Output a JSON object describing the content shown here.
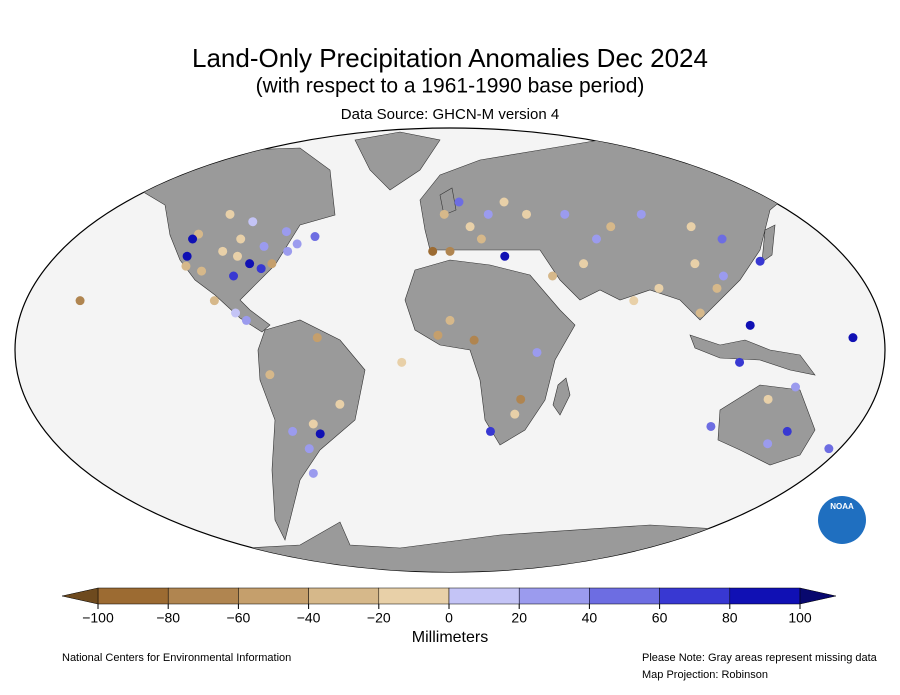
{
  "chart_data": {
    "type": "map",
    "title": "Land-Only Precipitation Anomalies Dec 2024",
    "subtitle": "(with respect to a 1961-1990 base period)",
    "source": "Data Source: GHCN-M version 4",
    "colorbar": {
      "label": "Millimeters",
      "ticks": [
        {
          "value": -100,
          "label": "−100"
        },
        {
          "value": -80,
          "label": "−80"
        },
        {
          "value": -60,
          "label": "−60"
        },
        {
          "value": -40,
          "label": "−40"
        },
        {
          "value": -20,
          "label": "−20"
        },
        0,
        20,
        40,
        60,
        80,
        100
      ],
      "colors": [
        "#9c6b32",
        "#b08550",
        "#c59f6c",
        "#d6b88a",
        "#e8d0a8",
        "#c4c4f6",
        "#9b9bee",
        "#6d6de2",
        "#3838d2",
        "#1010b4"
      ],
      "under_color": "#6e4a1e",
      "over_color": "#08086e"
    },
    "stations": [
      {
        "lon": -122,
        "lat": 47,
        "value": -30
      },
      {
        "lon": -118,
        "lat": 34,
        "value": -40
      },
      {
        "lon": -105,
        "lat": 40,
        "value": -20
      },
      {
        "lon": -95,
        "lat": 30,
        "value": 60
      },
      {
        "lon": -90,
        "lat": 35,
        "value": 80
      },
      {
        "lon": -80,
        "lat": 35,
        "value": -50
      },
      {
        "lon": -75,
        "lat": 40,
        "value": 30
      },
      {
        "lon": -87,
        "lat": 42,
        "value": 20
      },
      {
        "lon": -100,
        "lat": 45,
        "value": -10
      },
      {
        "lon": -110,
        "lat": 32,
        "value": -30
      },
      {
        "lon": -120,
        "lat": 38,
        "value": 90
      },
      {
        "lon": -123,
        "lat": 45,
        "value": 100
      },
      {
        "lon": -84,
        "lat": 33,
        "value": 70
      },
      {
        "lon": -97,
        "lat": 38,
        "value": -15
      },
      {
        "lon": -72,
        "lat": 43,
        "value": 25
      },
      {
        "lon": -115,
        "lat": 55,
        "value": -20
      },
      {
        "lon": -100,
        "lat": 52,
        "value": 10
      },
      {
        "lon": -80,
        "lat": 48,
        "value": 30
      },
      {
        "lon": -65,
        "lat": 46,
        "value": 40
      },
      {
        "lon": -100,
        "lat": 20,
        "value": -25
      },
      {
        "lon": -90,
        "lat": 15,
        "value": 15
      },
      {
        "lon": -85,
        "lat": 12,
        "value": 35
      },
      {
        "lon": -60,
        "lat": -30,
        "value": -20
      },
      {
        "lon": -65,
        "lat": -40,
        "value": 30
      },
      {
        "lon": -58,
        "lat": -34,
        "value": 90
      },
      {
        "lon": -47,
        "lat": -22,
        "value": -10
      },
      {
        "lon": -70,
        "lat": -33,
        "value": 20
      },
      {
        "lon": -75,
        "lat": -10,
        "value": -40
      },
      {
        "lon": -68,
        "lat": -50,
        "value": 25
      },
      {
        "lon": -55,
        "lat": 5,
        "value": -60
      },
      {
        "lon": 0,
        "lat": 40,
        "value": -70
      },
      {
        "lon": -8,
        "lat": 40,
        "value": -90
      },
      {
        "lon": 10,
        "lat": 50,
        "value": -20
      },
      {
        "lon": 20,
        "lat": 55,
        "value": 30
      },
      {
        "lon": 30,
        "lat": 60,
        "value": -10
      },
      {
        "lon": 15,
        "lat": 45,
        "value": -40
      },
      {
        "lon": 25,
        "lat": 38,
        "value": 80
      },
      {
        "lon": 5,
        "lat": 60,
        "value": 40
      },
      {
        "lon": -3,
        "lat": 55,
        "value": -30
      },
      {
        "lon": 0,
        "lat": 12,
        "value": -30
      },
      {
        "lon": -5,
        "lat": 6,
        "value": -50
      },
      {
        "lon": 10,
        "lat": 4,
        "value": -80
      },
      {
        "lon": 30,
        "lat": -20,
        "value": -70
      },
      {
        "lon": 36,
        "lat": -1,
        "value": 20
      },
      {
        "lon": 28,
        "lat": -26,
        "value": -15
      },
      {
        "lon": 18,
        "lat": -33,
        "value": 60
      },
      {
        "lon": 40,
        "lat": 55,
        "value": -20
      },
      {
        "lon": 60,
        "lat": 55,
        "value": 30
      },
      {
        "lon": 80,
        "lat": 50,
        "value": -25
      },
      {
        "lon": 100,
        "lat": 55,
        "value": 20
      },
      {
        "lon": 120,
        "lat": 50,
        "value": -10
      },
      {
        "lon": 130,
        "lat": 45,
        "value": 40
      },
      {
        "lon": 110,
        "lat": 35,
        "value": -15
      },
      {
        "lon": 115,
        "lat": 25,
        "value": -30
      },
      {
        "lon": 120,
        "lat": 30,
        "value": 25
      },
      {
        "lon": 78,
        "lat": 20,
        "value": -20
      },
      {
        "lon": 90,
        "lat": 25,
        "value": -10
      },
      {
        "lon": 140,
        "lat": 36,
        "value": 70
      },
      {
        "lon": 105,
        "lat": 15,
        "value": -30
      },
      {
        "lon": 125,
        "lat": 10,
        "value": 80
      },
      {
        "lon": 60,
        "lat": 35,
        "value": -15
      },
      {
        "lon": 45,
        "lat": 30,
        "value": -25
      },
      {
        "lon": 70,
        "lat": 45,
        "value": 30
      },
      {
        "lon": 150,
        "lat": -33,
        "value": 60
      },
      {
        "lon": 115,
        "lat": -31,
        "value": 50
      },
      {
        "lon": 135,
        "lat": -20,
        "value": -20
      },
      {
        "lon": 145,
        "lat": -38,
        "value": 20
      },
      {
        "lon": 175,
        "lat": -40,
        "value": 40
      },
      {
        "lon": 145,
        "lat": -15,
        "value": 30
      },
      {
        "lon": 120,
        "lat": -5,
        "value": 70
      },
      {
        "lon": 167,
        "lat": 5,
        "value": 90
      },
      {
        "lon": -157,
        "lat": 20,
        "value": -80
      },
      {
        "lon": -20,
        "lat": -5,
        "value": -15
      }
    ],
    "logo_text": "NOAA",
    "footer_left": "National Centers for Environmental Information",
    "footer_note": "Please Note: Gray areas represent missing data",
    "footer_projection": "Map Projection: Robinson"
  }
}
